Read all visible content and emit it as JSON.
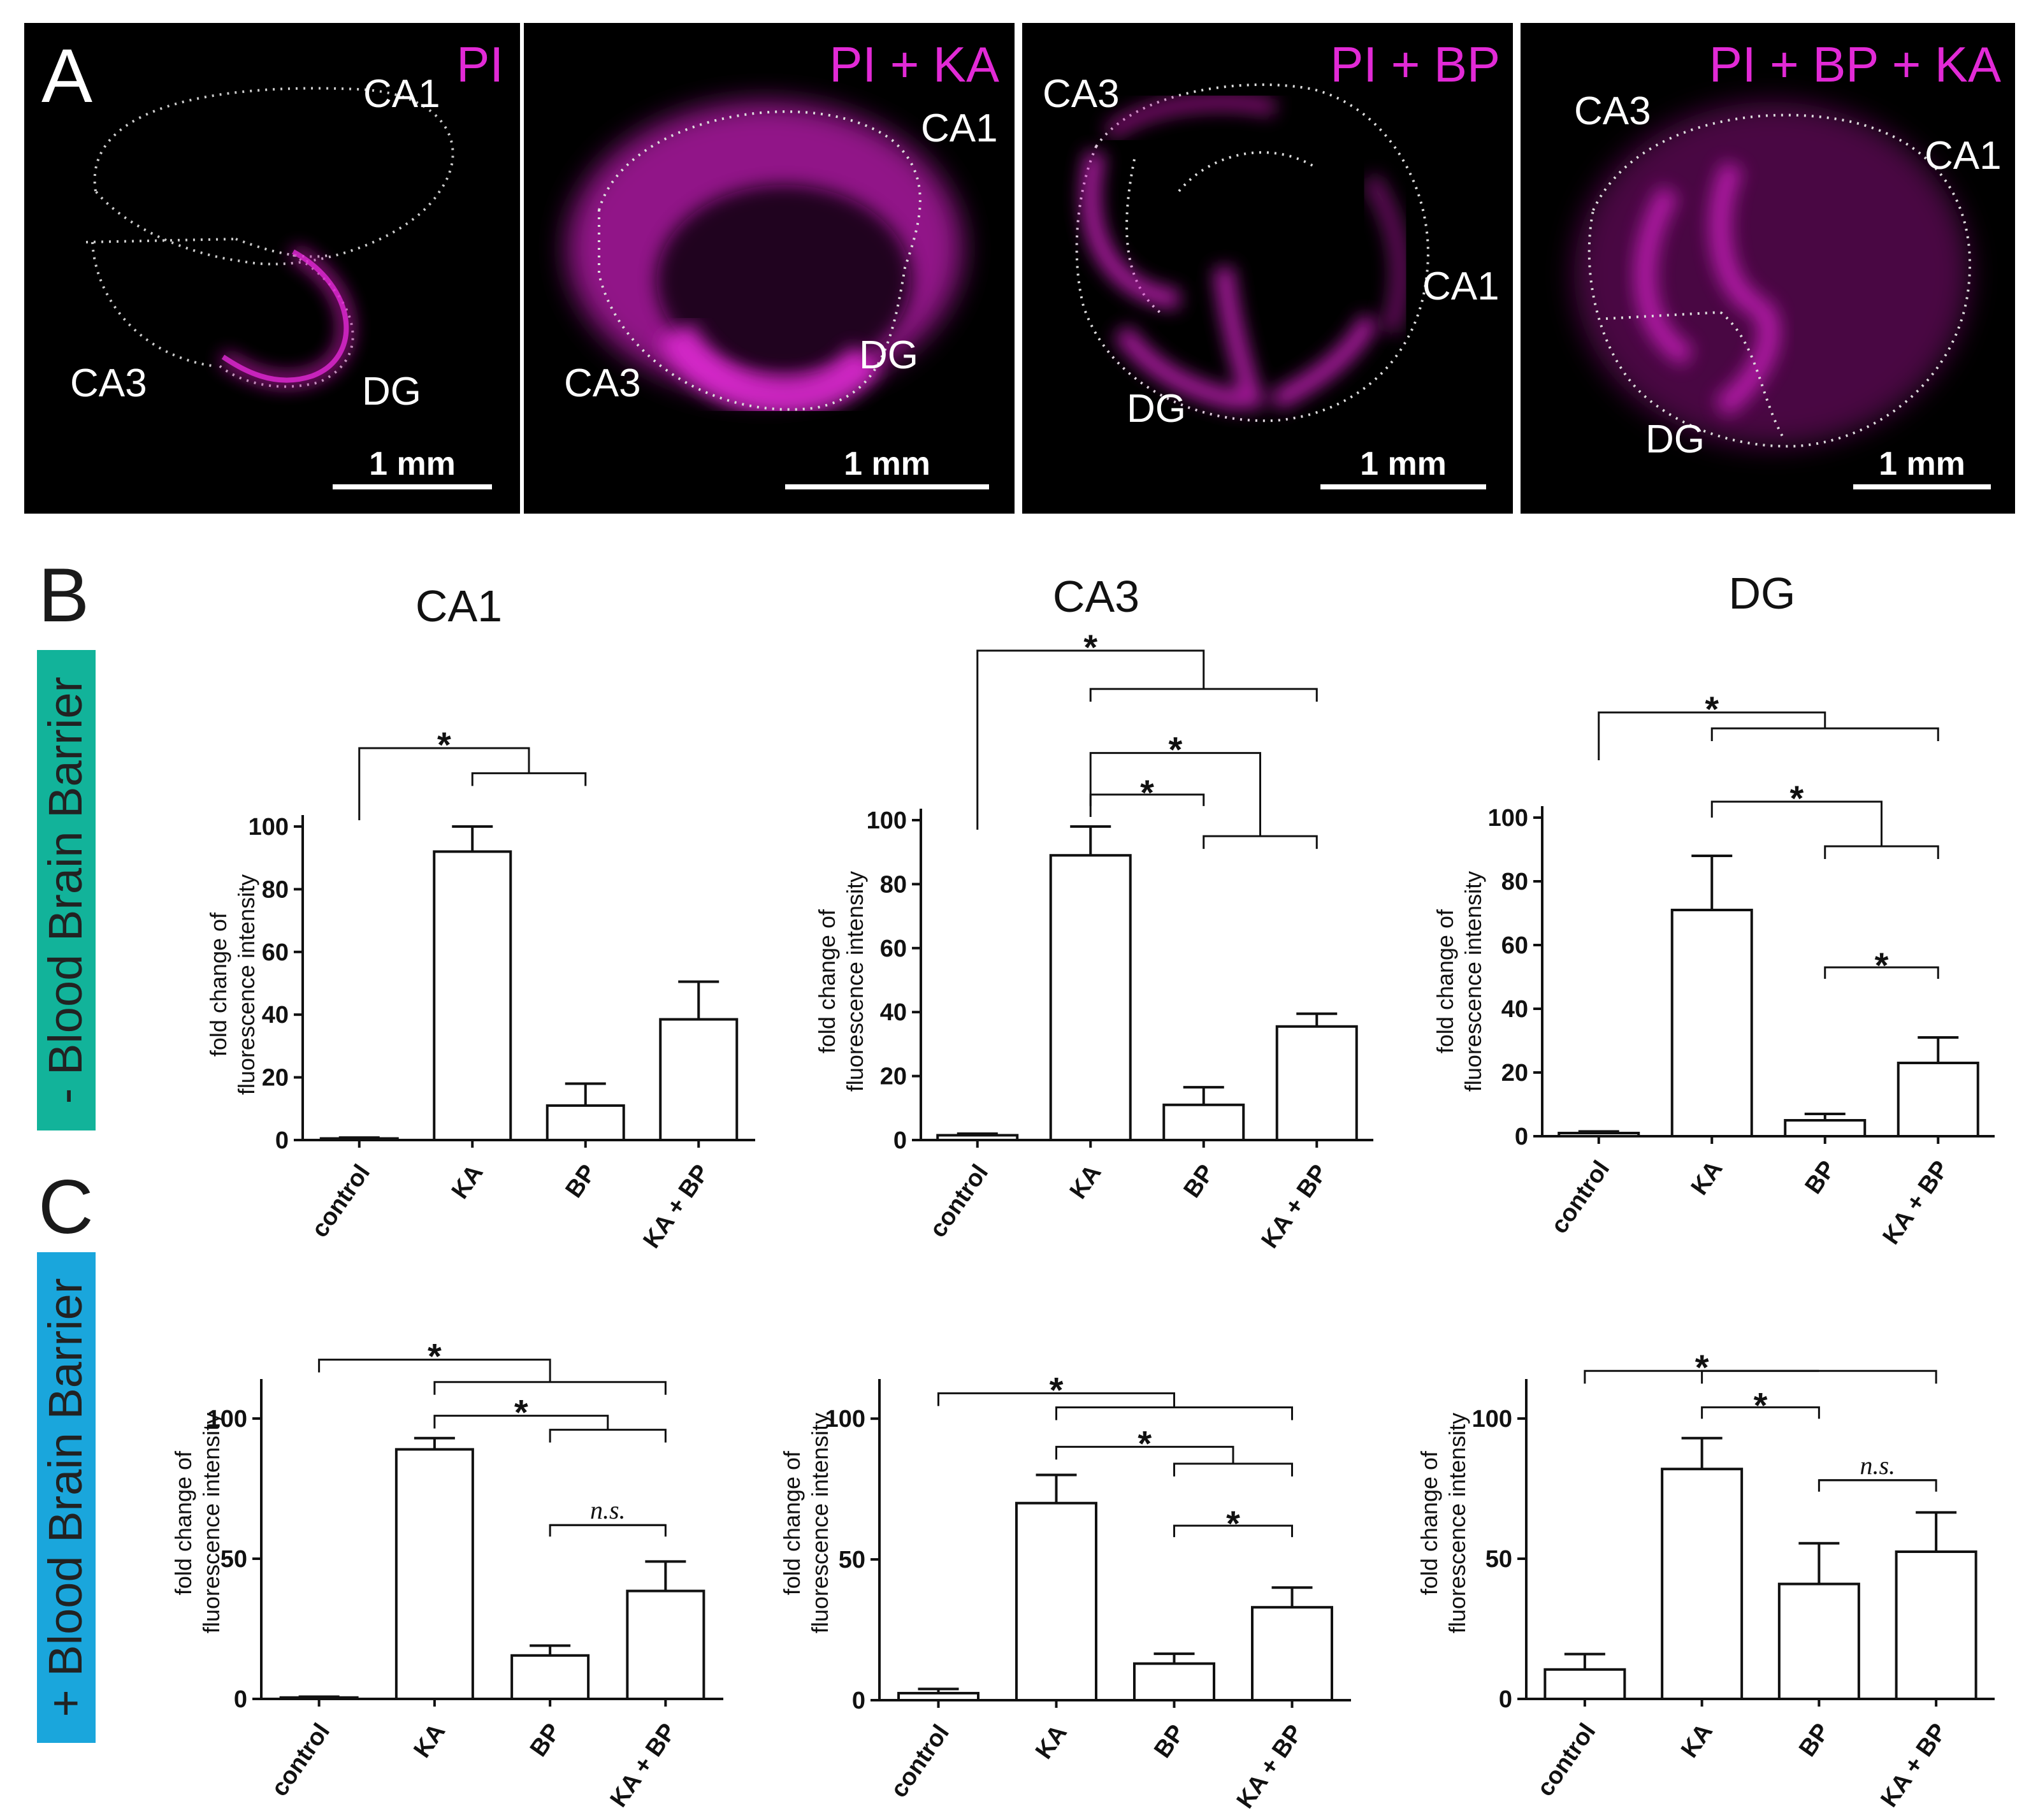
{
  "panel_letters": {
    "A": "A",
    "B": "B",
    "C": "C"
  },
  "side_labels": {
    "minus_bbb": {
      "text": "- Blood Brain Barrier",
      "color": "#12b39a"
    },
    "plus_bbb": {
      "text": "+ Blood Brain Barrier",
      "color": "#1aa6dc"
    }
  },
  "micrographs": [
    {
      "condition": "PI",
      "regions": [
        "CA1",
        "CA3",
        "DG"
      ],
      "scale": "1 mm"
    },
    {
      "condition": "PI + KA",
      "regions": [
        "CA1",
        "CA3",
        "DG"
      ],
      "scale": "1 mm"
    },
    {
      "condition": "PI + BP",
      "regions": [
        "CA3",
        "CA1",
        "DG"
      ],
      "scale": "1 mm"
    },
    {
      "condition": "PI + BP + KA",
      "regions": [
        "CA3",
        "CA1",
        "DG"
      ],
      "scale": "1 mm"
    }
  ],
  "colors": {
    "magenta": "#e22ad6",
    "bar_fill": "#ffffff",
    "axis": "#111111"
  },
  "chart_data": [
    {
      "type": "bar",
      "row": "B",
      "title": "CA1",
      "ylabel_line1": "fold change of",
      "ylabel_line2": "fluorescence intensity",
      "categories": [
        "control",
        "KA",
        "BP",
        "KA + BP"
      ],
      "values": [
        0.5,
        92,
        11,
        38.5
      ],
      "errors": [
        0.3,
        8,
        7,
        12
      ],
      "ylim": [
        0,
        100
      ],
      "yticks": [
        "0",
        "20",
        "40",
        "60",
        "80",
        "100"
      ],
      "stars": [
        "*"
      ],
      "ns": []
    },
    {
      "type": "bar",
      "row": "B",
      "title": "CA3",
      "ylabel_line1": "fold change of",
      "ylabel_line2": "fluorescence intensity",
      "categories": [
        "control",
        "KA",
        "BP",
        "KA + BP"
      ],
      "values": [
        1.5,
        89,
        11,
        35.5
      ],
      "errors": [
        0.5,
        9,
        5.5,
        4
      ],
      "ylim": [
        0,
        100
      ],
      "yticks": [
        "0",
        "20",
        "40",
        "60",
        "80",
        "100"
      ],
      "stars": [
        "*",
        "*",
        "*"
      ],
      "ns": []
    },
    {
      "type": "bar",
      "row": "B",
      "title": "DG",
      "ylabel_line1": "fold change of",
      "ylabel_line2": "fluorescence intensity",
      "categories": [
        "control",
        "KA",
        "BP",
        "KA + BP"
      ],
      "values": [
        1,
        71,
        5,
        23
      ],
      "errors": [
        0.5,
        17,
        2,
        8
      ],
      "ylim": [
        0,
        100
      ],
      "yticks": [
        "0",
        "20",
        "40",
        "60",
        "80",
        "100"
      ],
      "stars": [
        "*",
        "*",
        "*"
      ],
      "ns": []
    },
    {
      "type": "bar",
      "row": "C",
      "title": "",
      "ylabel_line1": "fold change of",
      "ylabel_line2": "fluorescence intensity",
      "categories": [
        "control",
        "KA",
        "BP",
        "KA + BP"
      ],
      "values": [
        0.5,
        89,
        15.5,
        38.5
      ],
      "errors": [
        0.3,
        4,
        3.5,
        10.5
      ],
      "ylim": [
        0,
        110
      ],
      "yticks": [
        "0",
        "50",
        "100"
      ],
      "stars": [
        "*",
        "*"
      ],
      "ns": [
        "n.s."
      ]
    },
    {
      "type": "bar",
      "row": "C",
      "title": "",
      "ylabel_line1": "fold change of",
      "ylabel_line2": "fluorescence intensity",
      "categories": [
        "control",
        "KA",
        "BP",
        "KA + BP"
      ],
      "values": [
        2.5,
        70,
        13,
        33
      ],
      "errors": [
        1.5,
        10,
        3.5,
        7
      ],
      "ylim": [
        0,
        110
      ],
      "yticks": [
        "0",
        "50",
        "100"
      ],
      "stars": [
        "*",
        "*",
        "*"
      ],
      "ns": []
    },
    {
      "type": "bar",
      "row": "C",
      "title": "",
      "ylabel_line1": "fold change of",
      "ylabel_line2": "fluorescence intensity",
      "categories": [
        "control",
        "KA",
        "BP",
        "KA + BP"
      ],
      "values": [
        10.5,
        82,
        41,
        52.5
      ],
      "errors": [
        5.5,
        11,
        14.5,
        14
      ],
      "ylim": [
        0,
        110
      ],
      "yticks": [
        "0",
        "50",
        "100"
      ],
      "stars": [
        "*",
        "*"
      ],
      "ns": [
        "n.s."
      ]
    }
  ]
}
